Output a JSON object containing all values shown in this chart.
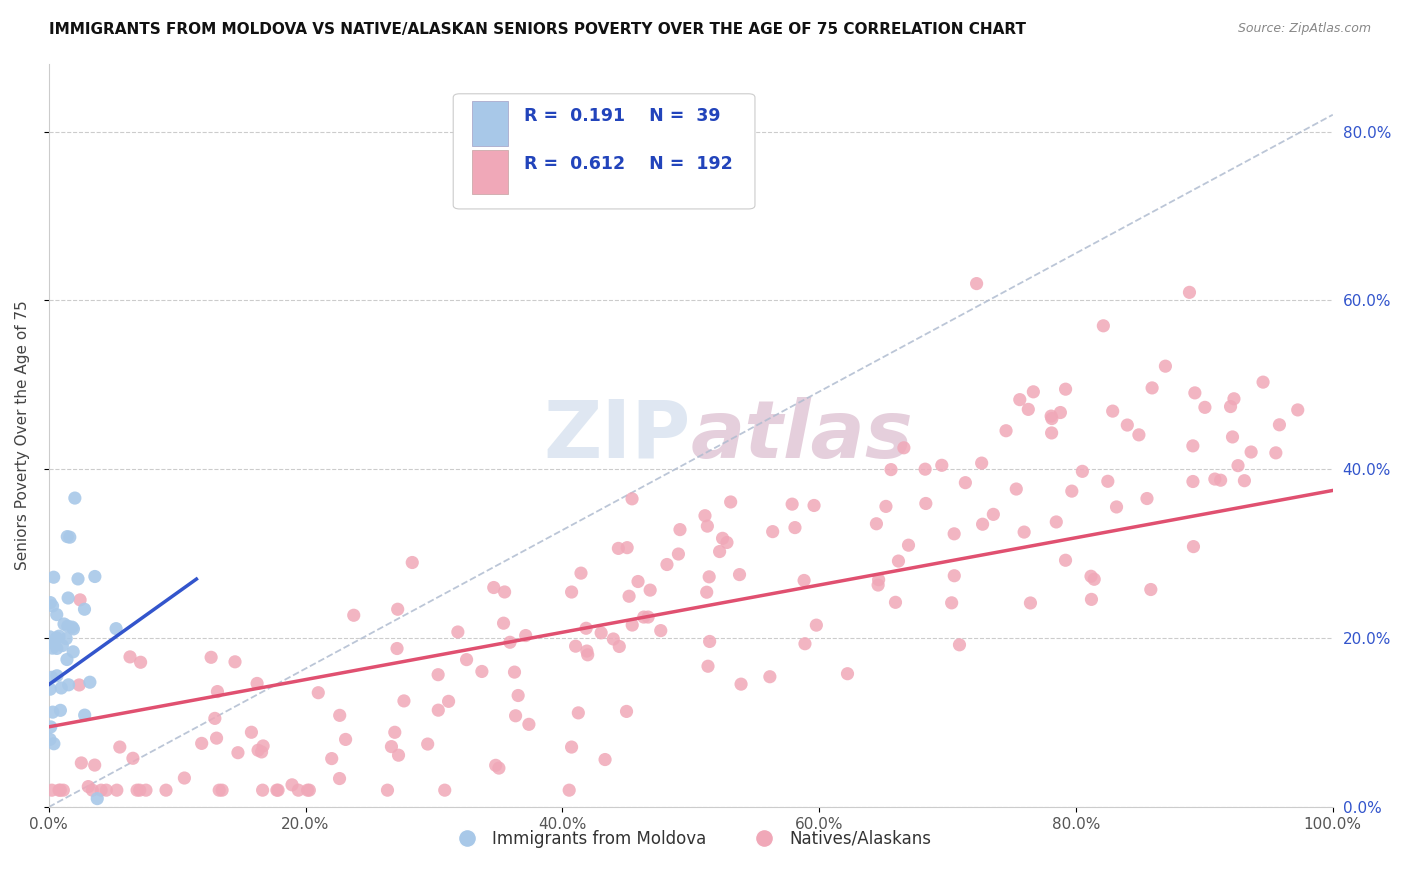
{
  "title": "IMMIGRANTS FROM MOLDOVA VS NATIVE/ALASKAN SENIORS POVERTY OVER THE AGE OF 75 CORRELATION CHART",
  "source": "Source: ZipAtlas.com",
  "ylabel": "Seniors Poverty Over the Age of 75",
  "legend_label1": "Immigrants from Moldova",
  "legend_label2": "Natives/Alaskans",
  "R1": 0.191,
  "N1": 39,
  "R2": 0.612,
  "N2": 192,
  "color_blue": "#a8c8e8",
  "color_pink": "#f0a8b8",
  "color_blue_line": "#3355cc",
  "color_pink_line": "#e05070",
  "color_dashed": "#b0bcd0",
  "watermark_color": "#c5d5e8",
  "title_color": "#111111",
  "stats_color": "#2244bb",
  "ytick_color": "#3355cc",
  "background_color": "#ffffff",
  "xlim": [
    0.0,
    1.0
  ],
  "ylim": [
    0.0,
    0.88
  ],
  "x_ticks": [
    0.0,
    0.2,
    0.4,
    0.6,
    0.8,
    1.0
  ],
  "y_ticks": [
    0.0,
    0.2,
    0.4,
    0.6,
    0.8
  ],
  "dashed_line_x": [
    0.0,
    1.0
  ],
  "dashed_line_y": [
    0.0,
    0.82
  ],
  "pink_trend_x": [
    0.0,
    1.0
  ],
  "pink_trend_y": [
    0.095,
    0.375
  ],
  "blue_trend_x": [
    0.0,
    0.115
  ],
  "blue_trend_y": [
    0.145,
    0.27
  ]
}
